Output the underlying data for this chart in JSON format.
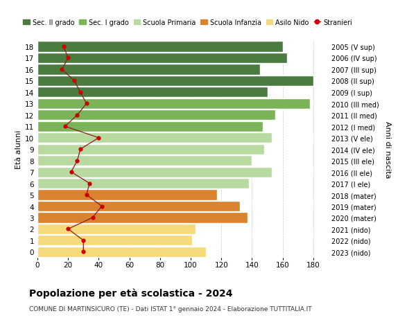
{
  "ages": [
    18,
    17,
    16,
    15,
    14,
    13,
    12,
    11,
    10,
    9,
    8,
    7,
    6,
    5,
    4,
    3,
    2,
    1,
    0
  ],
  "labels_right": [
    "2005 (V sup)",
    "2006 (IV sup)",
    "2007 (III sup)",
    "2008 (II sup)",
    "2009 (I sup)",
    "2010 (III med)",
    "2011 (II med)",
    "2012 (I med)",
    "2013 (V ele)",
    "2014 (IV ele)",
    "2015 (III ele)",
    "2016 (II ele)",
    "2017 (I ele)",
    "2018 (mater)",
    "2019 (mater)",
    "2020 (mater)",
    "2021 (nido)",
    "2022 (nido)",
    "2023 (nido)"
  ],
  "bar_values": [
    160,
    163,
    145,
    180,
    150,
    178,
    155,
    147,
    153,
    148,
    140,
    153,
    138,
    117,
    132,
    137,
    103,
    101,
    110
  ],
  "bar_colors": [
    "#4a7c3f",
    "#4a7c3f",
    "#4a7c3f",
    "#4a7c3f",
    "#4a7c3f",
    "#7ab358",
    "#7ab358",
    "#7ab358",
    "#b8d9a0",
    "#b8d9a0",
    "#b8d9a0",
    "#b8d9a0",
    "#b8d9a0",
    "#d9832e",
    "#d9832e",
    "#d9832e",
    "#f5d97a",
    "#f5d97a",
    "#f5d97a"
  ],
  "stranieri_values": [
    17,
    20,
    16,
    24,
    28,
    32,
    26,
    18,
    40,
    28,
    26,
    22,
    34,
    32,
    42,
    36,
    20,
    30,
    30
  ],
  "legend_labels": [
    "Sec. II grado",
    "Sec. I grado",
    "Scuola Primaria",
    "Scuola Infanzia",
    "Asilo Nido",
    "Stranieri"
  ],
  "legend_colors": [
    "#4a7c3f",
    "#7ab358",
    "#b8d9a0",
    "#d9832e",
    "#f5d97a",
    "#cc0000"
  ],
  "ylabel": "Età alunni",
  "ylabel_right": "Anni di nascita",
  "title": "Popolazione per età scolastica - 2024",
  "subtitle": "COMUNE DI MARTINSICURO (TE) - Dati ISTAT 1° gennaio 2024 - Elaborazione TUTTITALIA.IT",
  "xlim": [
    0,
    190
  ],
  "background_color": "#ffffff",
  "grid_color": "#cccccc"
}
